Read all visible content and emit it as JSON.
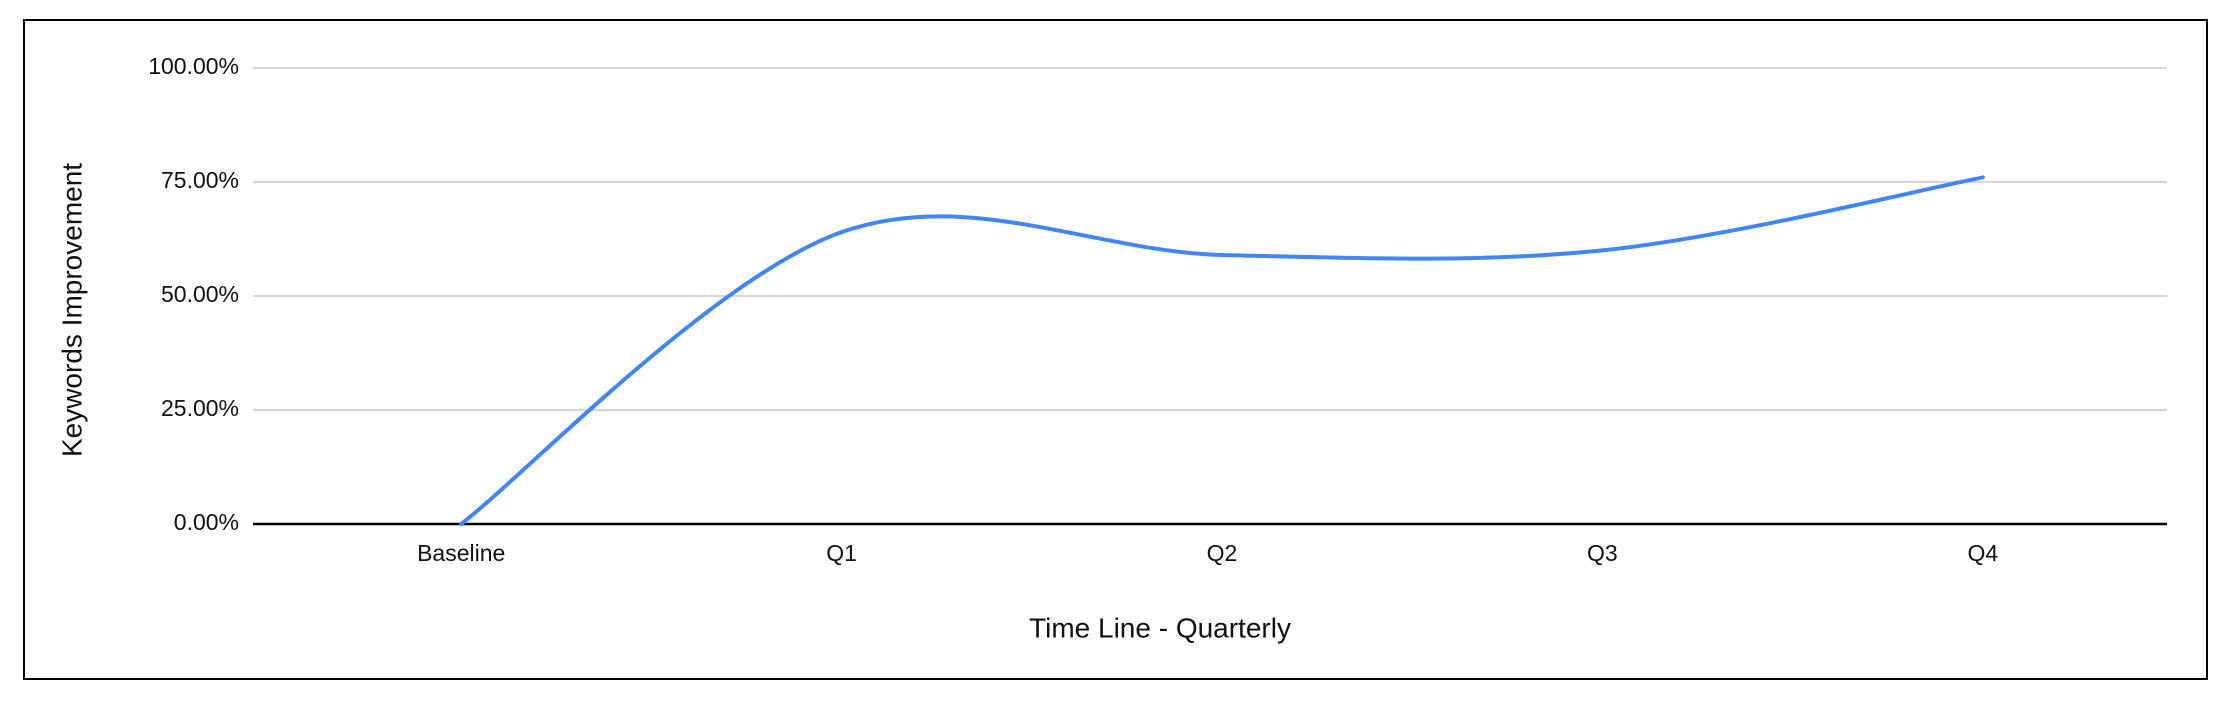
{
  "chart_data": {
    "type": "line",
    "x_label": "Time Line - Quarterly",
    "y_label": "Keywords Improvement",
    "categories": [
      "Baseline",
      "Q1",
      "Q2",
      "Q3",
      "Q4"
    ],
    "series": [
      {
        "name": "Keywords Improvement",
        "color": "#4285f4",
        "values": [
          0,
          64,
          59,
          60,
          76
        ]
      }
    ],
    "ylim": [
      0,
      100
    ],
    "yticks": [
      {
        "value": 0,
        "label": "0.00%"
      },
      {
        "value": 25,
        "label": "25.00%"
      },
      {
        "value": 50,
        "label": "50.00%"
      },
      {
        "value": 75,
        "label": "75.00%"
      },
      {
        "value": 100,
        "label": "100.00%"
      }
    ],
    "grid": true
  }
}
